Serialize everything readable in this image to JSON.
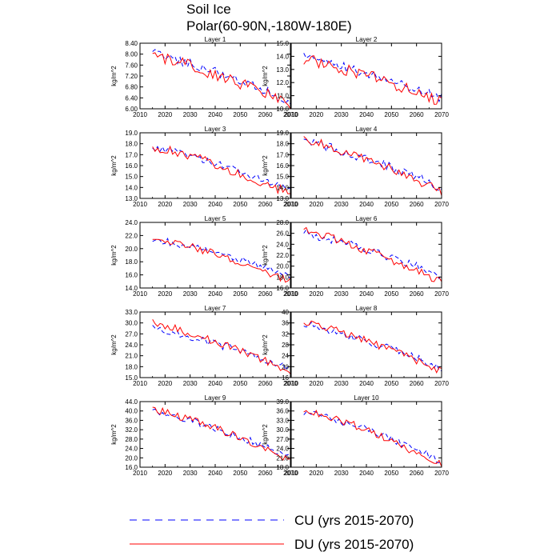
{
  "figure": {
    "title_line1": "Soil Ice",
    "title_line2": "Polar(60-90N,-180W-180E)"
  },
  "legend": {
    "items": [
      {
        "label": "CU (yrs 2015-2070)",
        "color": "#0000ff",
        "dash": true
      },
      {
        "label": "DU (yrs 2015-2070)",
        "color": "#ff0000",
        "dash": false
      }
    ]
  },
  "chart_data": [
    {
      "type": "line",
      "title": "Layer 1",
      "ylabel": "kg/m^2",
      "xlim": [
        2010,
        2070
      ],
      "ylim": [
        6.0,
        8.4
      ],
      "xticks": [
        2010,
        2020,
        2030,
        2040,
        2050,
        2060,
        2070
      ],
      "yticks": [
        6.0,
        6.4,
        6.8,
        7.2,
        7.6,
        8.0,
        8.4
      ],
      "ytick_labels": [
        "6.00",
        "6.40",
        "6.80",
        "7.20",
        "7.60",
        "8.00",
        "8.40"
      ],
      "x_start": 2015,
      "x_end": 2070,
      "series": [
        {
          "name": "CU",
          "color": "#0000ff",
          "dash": true,
          "start": 8.05,
          "end": 6.25,
          "amp": 0.18
        },
        {
          "name": "DU",
          "color": "#ff0000",
          "dash": false,
          "start": 7.95,
          "end": 6.15,
          "amp": 0.22
        }
      ]
    },
    {
      "type": "line",
      "title": "Layer 2",
      "ylabel": "kg/m^2",
      "xlim": [
        2010,
        2070
      ],
      "ylim": [
        10.0,
        15.0
      ],
      "xticks": [
        2010,
        2020,
        2030,
        2040,
        2050,
        2060,
        2070
      ],
      "yticks": [
        10,
        11,
        12,
        13,
        14,
        15
      ],
      "ytick_labels": [
        "10.0",
        "11.0",
        "12.0",
        "13.0",
        "14.0",
        "15.0"
      ],
      "x_start": 2015,
      "x_end": 2070,
      "series": [
        {
          "name": "CU",
          "color": "#0000ff",
          "dash": true,
          "start": 13.9,
          "end": 10.8,
          "amp": 0.35
        },
        {
          "name": "DU",
          "color": "#ff0000",
          "dash": false,
          "start": 13.8,
          "end": 10.5,
          "amp": 0.45
        }
      ]
    },
    {
      "type": "line",
      "title": "Layer 3",
      "ylabel": "kg/m^2",
      "xlim": [
        2010,
        2070
      ],
      "ylim": [
        13.0,
        19.0
      ],
      "xticks": [
        2010,
        2020,
        2030,
        2040,
        2050,
        2060,
        2070
      ],
      "yticks": [
        13,
        14,
        15,
        16,
        17,
        18,
        19
      ],
      "ytick_labels": [
        "13.0",
        "14.0",
        "15.0",
        "16.0",
        "17.0",
        "18.0",
        "19.0"
      ],
      "x_start": 2015,
      "x_end": 2070,
      "series": [
        {
          "name": "CU",
          "color": "#0000ff",
          "dash": true,
          "start": 17.7,
          "end": 13.8,
          "amp": 0.35
        },
        {
          "name": "DU",
          "color": "#ff0000",
          "dash": false,
          "start": 17.8,
          "end": 13.4,
          "amp": 0.45
        }
      ]
    },
    {
      "type": "line",
      "title": "Layer 4",
      "ylabel": "kg/m^2",
      "xlim": [
        2010,
        2070
      ],
      "ylim": [
        13.0,
        19.0
      ],
      "xticks": [
        2010,
        2020,
        2030,
        2040,
        2050,
        2060,
        2070
      ],
      "yticks": [
        13,
        14,
        15,
        16,
        17,
        18,
        19
      ],
      "ytick_labels": [
        "13.0",
        "14.0",
        "15.0",
        "16.0",
        "17.0",
        "18.0",
        "19.0"
      ],
      "x_start": 2015,
      "x_end": 2070,
      "series": [
        {
          "name": "CU",
          "color": "#0000ff",
          "dash": true,
          "start": 18.2,
          "end": 14.0,
          "amp": 0.45
        },
        {
          "name": "DU",
          "color": "#ff0000",
          "dash": false,
          "start": 18.4,
          "end": 13.5,
          "amp": 0.45
        }
      ]
    },
    {
      "type": "line",
      "title": "Layer 5",
      "ylabel": "kg/m^2",
      "xlim": [
        2010,
        2070
      ],
      "ylim": [
        14.0,
        24.0
      ],
      "xticks": [
        2010,
        2020,
        2030,
        2040,
        2050,
        2060,
        2070
      ],
      "yticks": [
        14,
        16,
        18,
        20,
        22,
        24
      ],
      "ytick_labels": [
        "14.0",
        "16.0",
        "18.0",
        "20.0",
        "22.0",
        "24.0"
      ],
      "x_start": 2015,
      "x_end": 2070,
      "series": [
        {
          "name": "CU",
          "color": "#0000ff",
          "dash": true,
          "start": 21.5,
          "end": 15.8,
          "amp": 0.55
        },
        {
          "name": "DU",
          "color": "#ff0000",
          "dash": false,
          "start": 21.8,
          "end": 15.0,
          "amp": 0.6
        }
      ]
    },
    {
      "type": "line",
      "title": "Layer 6",
      "ylabel": "kg/m^2",
      "xlim": [
        2010,
        2070
      ],
      "ylim": [
        16.0,
        28.0
      ],
      "xticks": [
        2010,
        2020,
        2030,
        2040,
        2050,
        2060,
        2070
      ],
      "yticks": [
        16,
        18,
        20,
        22,
        24,
        26,
        28
      ],
      "ytick_labels": [
        "16.0",
        "18.0",
        "20.0",
        "22.0",
        "24.0",
        "26.0",
        "28.0"
      ],
      "x_start": 2015,
      "x_end": 2070,
      "series": [
        {
          "name": "CU",
          "color": "#0000ff",
          "dash": true,
          "start": 26.0,
          "end": 18.2,
          "amp": 0.8
        },
        {
          "name": "DU",
          "color": "#ff0000",
          "dash": false,
          "start": 26.6,
          "end": 17.0,
          "amp": 0.8
        }
      ]
    },
    {
      "type": "line",
      "title": "Layer 7",
      "ylabel": "kg/m^2",
      "xlim": [
        2010,
        2070
      ],
      "ylim": [
        15.0,
        33.0
      ],
      "xticks": [
        2010,
        2020,
        2030,
        2040,
        2050,
        2060,
        2070
      ],
      "yticks": [
        15,
        18,
        21,
        24,
        27,
        30,
        33
      ],
      "ytick_labels": [
        "15.0",
        "18.0",
        "21.0",
        "24.0",
        "27.0",
        "30.0",
        "33.0"
      ],
      "x_start": 2015,
      "x_end": 2070,
      "series": [
        {
          "name": "CU",
          "color": "#0000ff",
          "dash": true,
          "start": 28.5,
          "end": 17.5,
          "amp": 1.1
        },
        {
          "name": "DU",
          "color": "#ff0000",
          "dash": false,
          "start": 30.0,
          "end": 16.5,
          "amp": 1.1
        }
      ]
    },
    {
      "type": "line",
      "title": "Layer 8",
      "ylabel": "kg/m^2",
      "xlim": [
        2010,
        2070
      ],
      "ylim": [
        16,
        40
      ],
      "xticks": [
        2010,
        2020,
        2030,
        2040,
        2050,
        2060,
        2070
      ],
      "yticks": [
        16,
        20,
        24,
        28,
        32,
        36,
        40
      ],
      "ytick_labels": [
        "16",
        "20",
        "24",
        "28",
        "32",
        "36",
        "40"
      ],
      "x_start": 2015,
      "x_end": 2070,
      "series": [
        {
          "name": "CU",
          "color": "#0000ff",
          "dash": true,
          "start": 35.5,
          "end": 19.5,
          "amp": 1.4
        },
        {
          "name": "DU",
          "color": "#ff0000",
          "dash": false,
          "start": 36.5,
          "end": 18.0,
          "amp": 1.4
        }
      ]
    },
    {
      "type": "line",
      "title": "Layer 9",
      "ylabel": "kg/m^2",
      "xlim": [
        2010,
        2070
      ],
      "ylim": [
        16.0,
        44.0
      ],
      "xticks": [
        2010,
        2020,
        2030,
        2040,
        2050,
        2060,
        2070
      ],
      "yticks": [
        16,
        20,
        24,
        28,
        32,
        36,
        40,
        44
      ],
      "ytick_labels": [
        "16.0",
        "20.0",
        "24.0",
        "28.0",
        "32.0",
        "36.0",
        "40.0",
        "44.0"
      ],
      "x_start": 2015,
      "x_end": 2070,
      "series": [
        {
          "name": "CU",
          "color": "#0000ff",
          "dash": true,
          "start": 40.0,
          "end": 20.5,
          "amp": 1.6
        },
        {
          "name": "DU",
          "color": "#ff0000",
          "dash": false,
          "start": 41.0,
          "end": 19.0,
          "amp": 1.6
        }
      ]
    },
    {
      "type": "line",
      "title": "Layer 10",
      "ylabel": "kg/m^2",
      "xlim": [
        2010,
        2070
      ],
      "ylim": [
        18.0,
        39.0
      ],
      "xticks": [
        2010,
        2020,
        2030,
        2040,
        2050,
        2060,
        2070
      ],
      "yticks": [
        18,
        21,
        24,
        27,
        30,
        33,
        36,
        39
      ],
      "ytick_labels": [
        "18.0",
        "21.0",
        "24.0",
        "27.0",
        "30.0",
        "33.0",
        "36.0",
        "39.0"
      ],
      "x_start": 2015,
      "x_end": 2070,
      "series": [
        {
          "name": "CU",
          "color": "#0000ff",
          "dash": true,
          "start": 36.0,
          "end": 20.0,
          "amp": 1.3
        },
        {
          "name": "DU",
          "color": "#ff0000",
          "dash": false,
          "start": 36.8,
          "end": 18.5,
          "amp": 1.3
        }
      ]
    }
  ]
}
